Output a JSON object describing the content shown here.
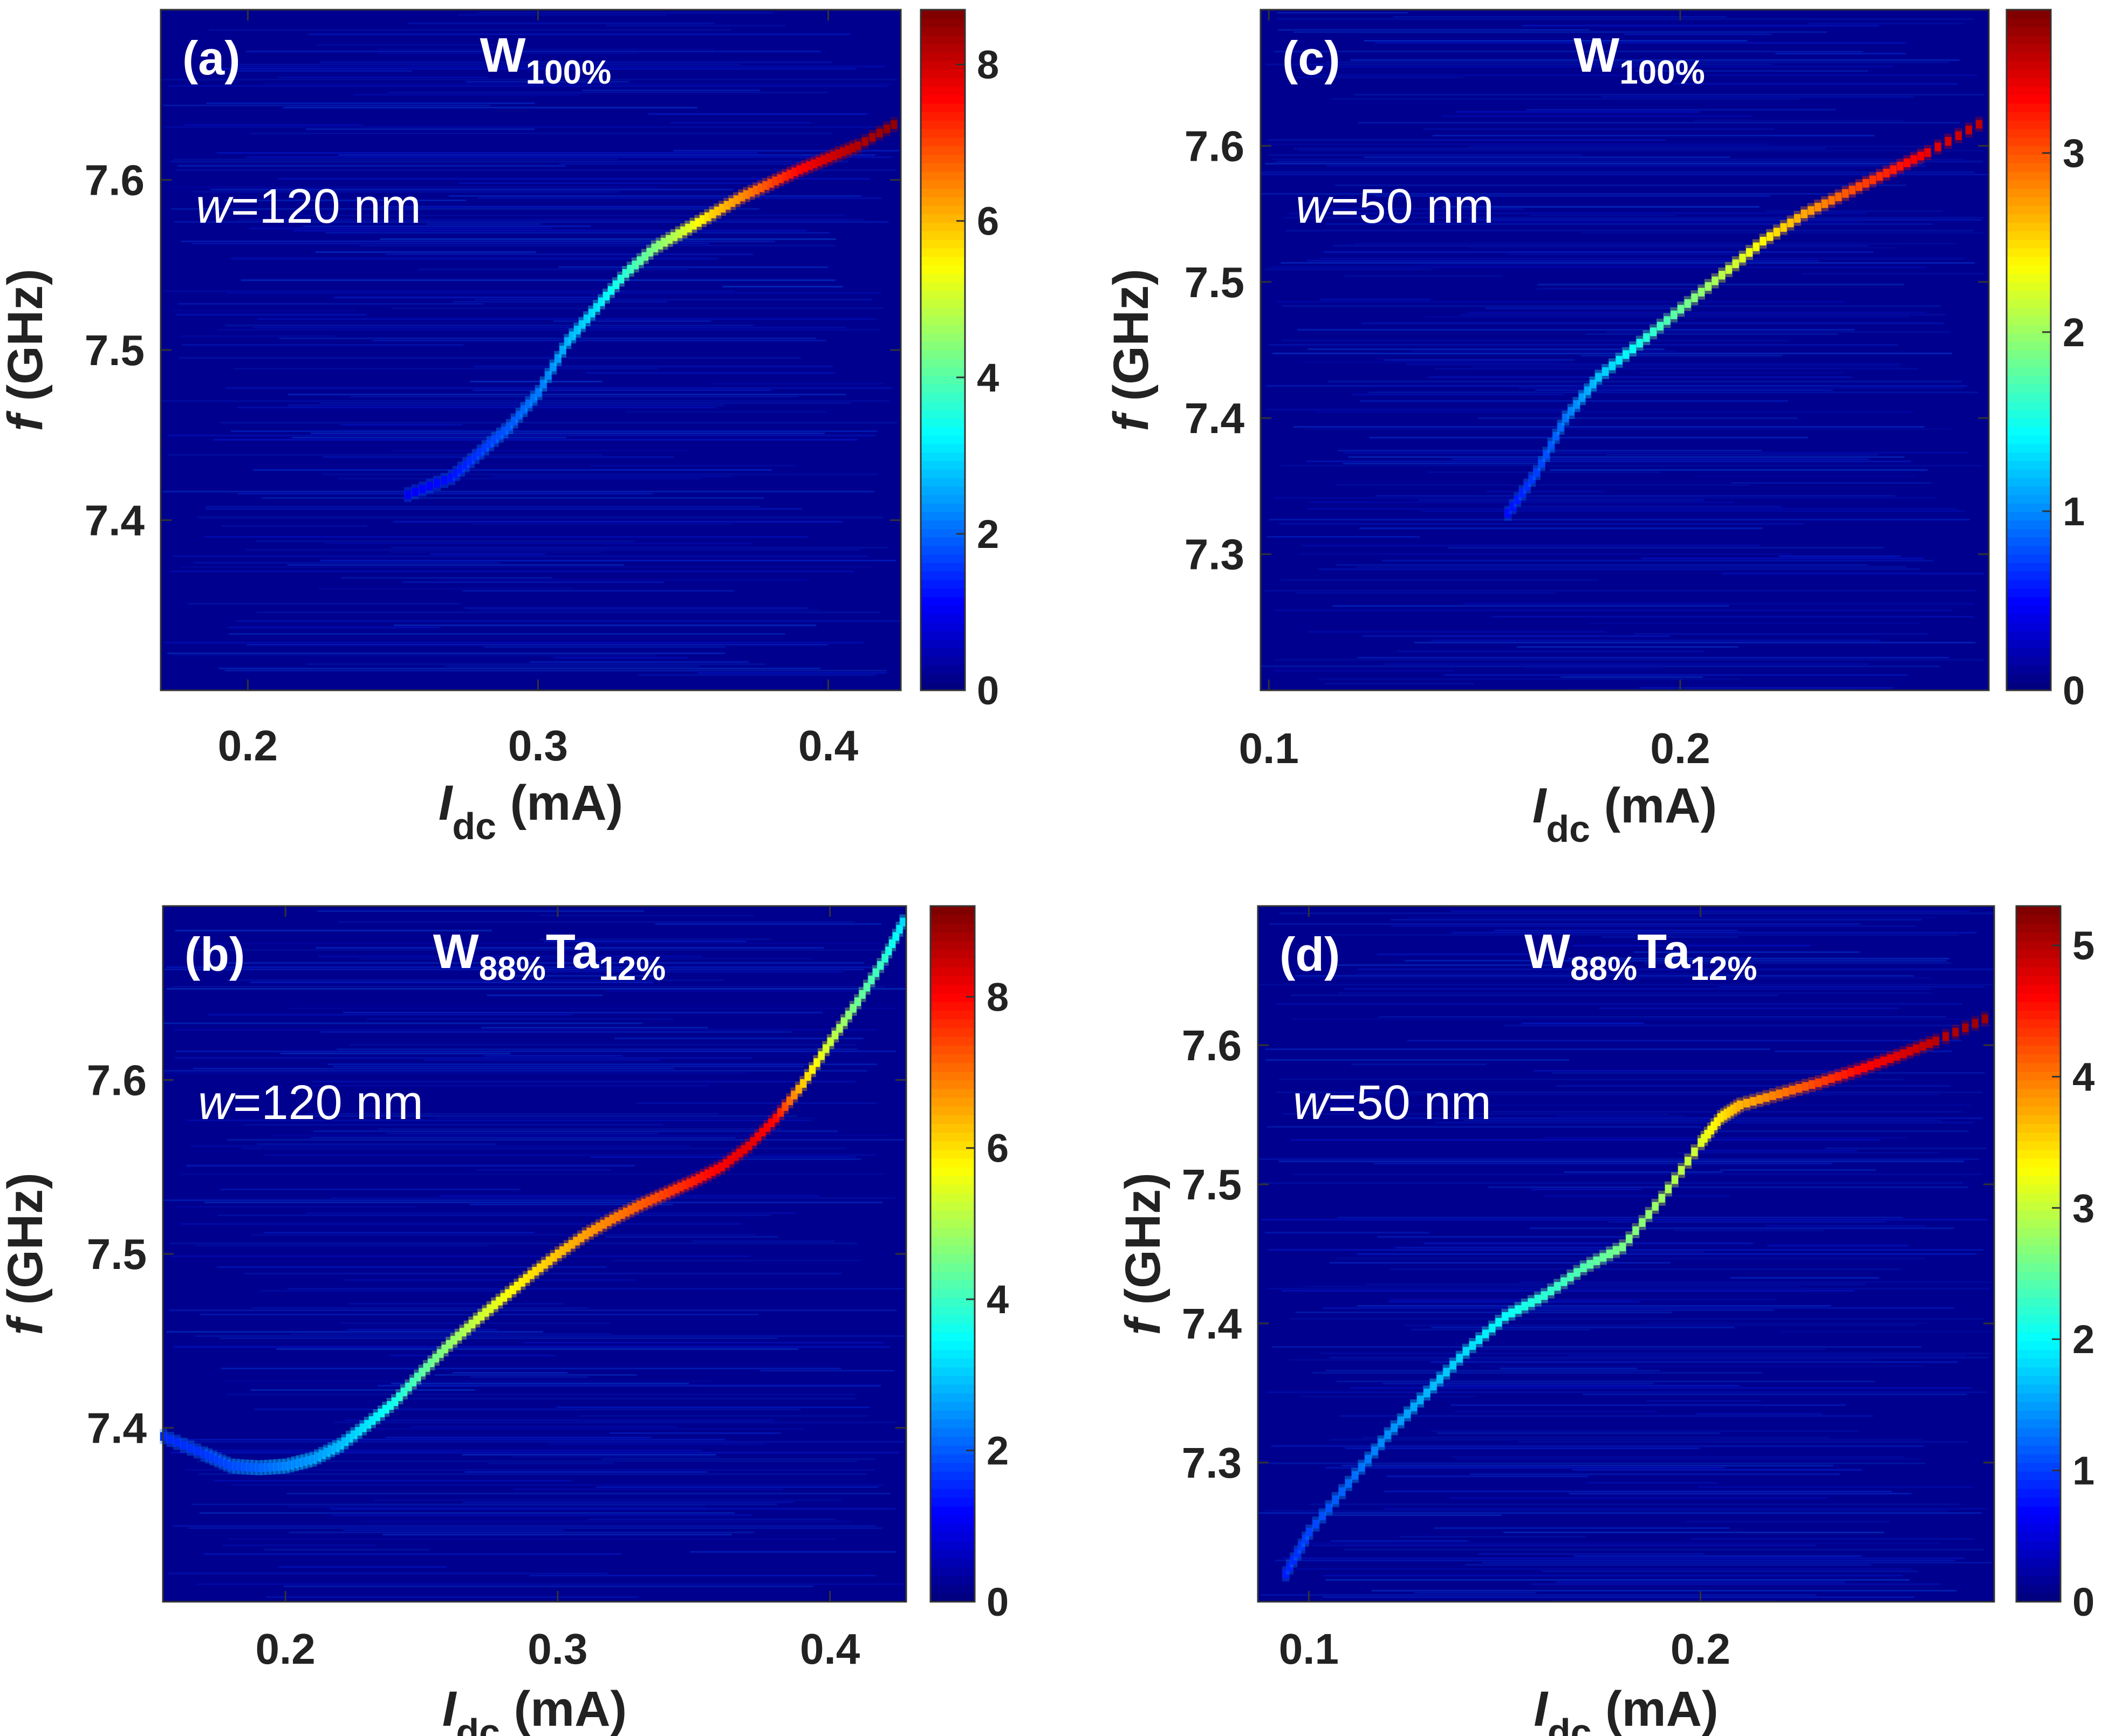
{
  "figure": {
    "colormap": "jet",
    "colors": {
      "background": "#00008f",
      "annotation_text": "#ffffff",
      "axis_text": "#222222"
    }
  },
  "chart_data": [
    {
      "id": "a",
      "type": "heatmap",
      "panel_label": "(a)",
      "material": {
        "base": "W",
        "sub1": "100%",
        "el2": "",
        "sub2": ""
      },
      "width_label": {
        "var": "w",
        "text": "=120 nm"
      },
      "xlabel": {
        "var": "I",
        "sub": "dc",
        "unit": " (mA)"
      },
      "ylabel": {
        "var": "f",
        "unit": " (GHz)"
      },
      "xlim": [
        0.17,
        0.425
      ],
      "ylim": [
        7.3,
        7.7
      ],
      "xticks": [
        0.2,
        0.3,
        0.4
      ],
      "xtick_labels": [
        "0.2",
        "0.3",
        "0.4"
      ],
      "yticks": [
        7.4,
        7.5,
        7.6
      ],
      "ytick_labels": [
        "7.4",
        "7.5",
        "7.6"
      ],
      "colorbar": {
        "range": [
          0,
          8.7
        ],
        "ticks": [
          0,
          2,
          4,
          6,
          8
        ],
        "tick_labels": [
          "0",
          "2",
          "4",
          "6",
          "8"
        ]
      },
      "ridge": {
        "x": [
          0.255,
          0.27,
          0.28,
          0.29,
          0.3,
          0.31,
          0.32,
          0.33,
          0.34,
          0.35,
          0.36,
          0.37,
          0.38,
          0.39,
          0.4,
          0.41,
          0.425
        ],
        "y": [
          7.415,
          7.425,
          7.44,
          7.455,
          7.475,
          7.505,
          7.525,
          7.545,
          7.56,
          7.57,
          7.58,
          7.59,
          7.598,
          7.606,
          7.613,
          7.62,
          7.635
        ],
        "intensity": [
          1.0,
          1.2,
          1.5,
          1.8,
          2.1,
          2.6,
          3.0,
          3.6,
          4.3,
          5.0,
          5.8,
          6.4,
          7.0,
          7.6,
          8.0,
          8.3,
          8.6
        ]
      }
    },
    {
      "id": "c",
      "type": "heatmap",
      "panel_label": "(c)",
      "material": {
        "base": "W",
        "sub1": "100%",
        "el2": "",
        "sub2": ""
      },
      "width_label": {
        "var": "w",
        "text": "=50 nm"
      },
      "xlabel": {
        "var": "I",
        "sub": "dc",
        "unit": " (mA)"
      },
      "ylabel": {
        "var": "f",
        "unit": " (GHz)"
      },
      "xlim": [
        0.098,
        0.275
      ],
      "ylim": [
        7.2,
        7.7
      ],
      "xticks": [
        0.1,
        0.2
      ],
      "xtick_labels": [
        "0.1",
        "0.2"
      ],
      "yticks": [
        7.3,
        7.4,
        7.5,
        7.6
      ],
      "ytick_labels": [
        "7.3",
        "7.4",
        "7.5",
        "7.6"
      ],
      "colorbar": {
        "range": [
          0,
          3.8
        ],
        "ticks": [
          0,
          1,
          2,
          3
        ],
        "tick_labels": [
          "0",
          "1",
          "2",
          "3"
        ]
      },
      "ridge": {
        "x": [
          0.158,
          0.165,
          0.172,
          0.18,
          0.19,
          0.2,
          0.21,
          0.22,
          0.23,
          0.24,
          0.25,
          0.26,
          0.275
        ],
        "y": [
          7.33,
          7.36,
          7.4,
          7.43,
          7.455,
          7.48,
          7.505,
          7.53,
          7.55,
          7.565,
          7.58,
          7.595,
          7.62
        ],
        "intensity": [
          0.5,
          0.7,
          0.9,
          1.2,
          1.5,
          1.8,
          2.1,
          2.4,
          2.7,
          3.0,
          3.2,
          3.4,
          3.6
        ]
      }
    },
    {
      "id": "b",
      "type": "heatmap",
      "panel_label": "(b)",
      "material": {
        "base": "W",
        "sub1": "88%",
        "el2": "Ta",
        "sub2": "12%"
      },
      "width_label": {
        "var": "w",
        "text": "=120 nm"
      },
      "xlabel": {
        "var": "I",
        "sub": "dc",
        "unit": " (mA)"
      },
      "ylabel": {
        "var": "f",
        "unit": " (GHz)"
      },
      "xlim": [
        0.155,
        0.428
      ],
      "ylim": [
        7.3,
        7.7
      ],
      "xticks": [
        0.2,
        0.3,
        0.4
      ],
      "xtick_labels": [
        "0.2",
        "0.3",
        "0.4"
      ],
      "yticks": [
        7.4,
        7.5,
        7.6
      ],
      "ytick_labels": [
        "7.4",
        "7.5",
        "7.6"
      ],
      "colorbar": {
        "range": [
          0,
          9.2
        ],
        "ticks": [
          0,
          2,
          4,
          6,
          8
        ],
        "tick_labels": [
          "0",
          "2",
          "4",
          "6",
          "8"
        ]
      },
      "ridge": {
        "x": [
          0.155,
          0.17,
          0.18,
          0.19,
          0.2,
          0.21,
          0.22,
          0.23,
          0.24,
          0.25,
          0.26,
          0.27,
          0.28,
          0.29,
          0.3,
          0.31,
          0.32,
          0.33,
          0.34,
          0.35,
          0.36,
          0.37,
          0.38,
          0.39,
          0.4,
          0.41,
          0.42,
          0.428
        ],
        "y": [
          7.395,
          7.385,
          7.378,
          7.377,
          7.378,
          7.382,
          7.39,
          7.402,
          7.415,
          7.432,
          7.448,
          7.462,
          7.475,
          7.488,
          7.5,
          7.511,
          7.52,
          7.528,
          7.535,
          7.542,
          7.55,
          7.562,
          7.578,
          7.598,
          7.622,
          7.645,
          7.67,
          7.695
        ],
        "intensity": [
          1.5,
          1.6,
          1.8,
          2.0,
          2.3,
          2.5,
          2.8,
          3.2,
          3.6,
          4.2,
          4.7,
          5.2,
          5.6,
          6.0,
          6.3,
          6.6,
          6.9,
          7.2,
          7.5,
          7.8,
          8.1,
          8.3,
          8.0,
          6.2,
          5.2,
          4.4,
          3.8,
          3.0
        ]
      }
    },
    {
      "id": "d",
      "type": "heatmap",
      "panel_label": "(d)",
      "material": {
        "base": "W",
        "sub1": "88%",
        "el2": "Ta",
        "sub2": "12%"
      },
      "width_label": {
        "var": "w",
        "text": "=50 nm"
      },
      "xlabel": {
        "var": "I",
        "sub": "dc",
        "unit": " (mA)"
      },
      "ylabel": {
        "var": "f",
        "unit": " (GHz)"
      },
      "xlim": [
        0.087,
        0.275
      ],
      "ylim": [
        7.2,
        7.7
      ],
      "xticks": [
        0.1,
        0.2
      ],
      "xtick_labels": [
        "0.1",
        "0.2"
      ],
      "yticks": [
        7.3,
        7.4,
        7.5,
        7.6
      ],
      "ytick_labels": [
        "7.3",
        "7.4",
        "7.5",
        "7.6"
      ],
      "colorbar": {
        "range": [
          0,
          5.3
        ],
        "ticks": [
          0,
          1,
          2,
          3,
          4,
          5
        ],
        "tick_labels": [
          "0",
          "1",
          "2",
          "3",
          "4",
          "5"
        ]
      },
      "ridge": {
        "x": [
          0.094,
          0.1,
          0.11,
          0.12,
          0.13,
          0.14,
          0.15,
          0.16,
          0.17,
          0.18,
          0.19,
          0.2,
          0.205,
          0.21,
          0.22,
          0.23,
          0.24,
          0.25,
          0.26,
          0.275
        ],
        "y": [
          7.22,
          7.25,
          7.285,
          7.32,
          7.35,
          7.38,
          7.405,
          7.42,
          7.44,
          7.455,
          7.49,
          7.53,
          7.548,
          7.557,
          7.565,
          7.573,
          7.582,
          7.592,
          7.603,
          7.622
        ],
        "intensity": [
          0.8,
          1.0,
          1.2,
          1.4,
          1.6,
          1.8,
          2.0,
          2.2,
          2.4,
          2.6,
          2.8,
          3.1,
          3.4,
          3.7,
          4.0,
          4.3,
          4.6,
          4.8,
          5.0,
          5.2
        ]
      }
    }
  ]
}
